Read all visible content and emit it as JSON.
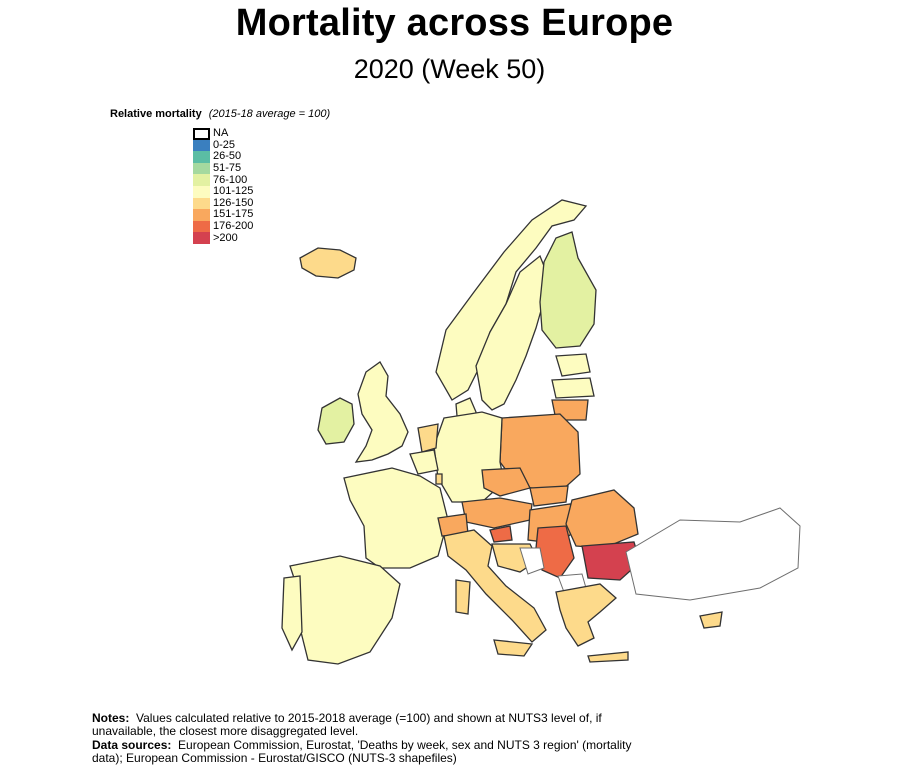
{
  "title": "Mortality across Europe",
  "subtitle": "2020 (Week 50)",
  "legend": {
    "title": "Relative mortality",
    "note": "(2015-18 average = 100)",
    "items": [
      {
        "label": "NA",
        "color": "#ffffff"
      },
      {
        "label": "0-25",
        "color": "#3a7fbf"
      },
      {
        "label": "26-50",
        "color": "#5bbda4"
      },
      {
        "label": "51-75",
        "color": "#a5d99f"
      },
      {
        "label": "76-100",
        "color": "#e3f1a2"
      },
      {
        "label": "101-125",
        "color": "#fdfcc0"
      },
      {
        "label": "126-150",
        "color": "#fdda8b"
      },
      {
        "label": "151-175",
        "color": "#f9a85e"
      },
      {
        "label": "176-200",
        "color": "#ee6b46"
      },
      {
        "label": ">200",
        "color": "#d4414f"
      }
    ]
  },
  "notes": {
    "notes_label": "Notes:",
    "notes_text": "Values calculated relative to 2015-2018 average (=100) and shown at NUTS3 level of, if unavailable, the closest more disaggregated level.",
    "sources_label": "Data sources:",
    "sources_text": "European Commission, Eurostat, 'Deaths by week, sex and NUTS 3 region' (mortality data); European Commission - Eurostat/GISCO (NUTS-3 shapefiles)"
  },
  "regions": [
    {
      "name": "Iceland",
      "category": "126-150"
    },
    {
      "name": "Ireland",
      "category": "76-100"
    },
    {
      "name": "United Kingdom",
      "category": "101-125"
    },
    {
      "name": "Norway",
      "category": "101-125"
    },
    {
      "name": "Sweden",
      "category": "101-125"
    },
    {
      "name": "Finland",
      "category": "76-100"
    },
    {
      "name": "Estonia",
      "category": "101-125"
    },
    {
      "name": "Latvia",
      "category": "101-125"
    },
    {
      "name": "Lithuania",
      "category": "151-175"
    },
    {
      "name": "Denmark",
      "category": "101-125"
    },
    {
      "name": "Poland",
      "category": "151-175"
    },
    {
      "name": "Germany",
      "category": "101-125"
    },
    {
      "name": "Netherlands",
      "category": "126-150"
    },
    {
      "name": "Belgium",
      "category": "101-125"
    },
    {
      "name": "Luxembourg",
      "category": "126-150"
    },
    {
      "name": "France",
      "category": "101-125"
    },
    {
      "name": "Czechia",
      "category": "151-175"
    },
    {
      "name": "Slovakia",
      "category": "151-175"
    },
    {
      "name": "Austria",
      "category": "151-175"
    },
    {
      "name": "Switzerland",
      "category": "151-175"
    },
    {
      "name": "Slovenia",
      "category": "176-200"
    },
    {
      "name": "Hungary",
      "category": "151-175"
    },
    {
      "name": "Croatia",
      "category": "126-150"
    },
    {
      "name": "Italy",
      "category": "126-150"
    },
    {
      "name": "Spain",
      "category": "101-125"
    },
    {
      "name": "Portugal",
      "category": "101-125"
    },
    {
      "name": "Romania",
      "category": "151-175"
    },
    {
      "name": "Bulgaria",
      "category": ">200"
    },
    {
      "name": "Serbia",
      "category": "176-200"
    },
    {
      "name": "Bosnia and Herzegovina",
      "category": "NA"
    },
    {
      "name": "North Macedonia",
      "category": "NA"
    },
    {
      "name": "Greece",
      "category": "126-150"
    },
    {
      "name": "Turkey",
      "category": "NA"
    },
    {
      "name": "Cyprus",
      "category": "126-150"
    }
  ]
}
